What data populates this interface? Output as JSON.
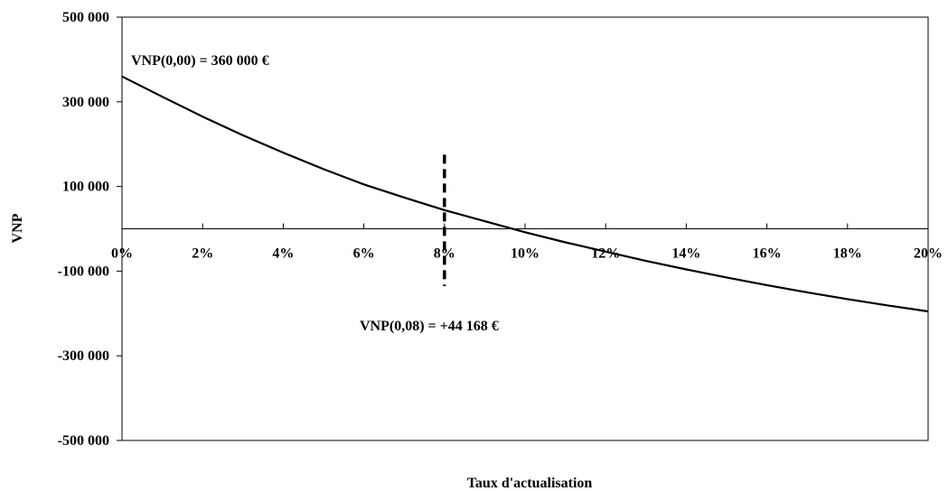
{
  "chart_data": {
    "type": "line",
    "xlabel": "Taux d'actualisation",
    "ylabel": "VNP",
    "xlim": [
      0,
      0.2
    ],
    "ylim": [
      -500000,
      500000
    ],
    "grid": false,
    "x_tick_values": [
      0,
      0.02,
      0.04,
      0.06,
      0.08,
      0.1,
      0.12,
      0.14,
      0.16,
      0.18,
      0.2
    ],
    "x_tick_labels": [
      "0%",
      "2%",
      "4%",
      "6%",
      "8%",
      "10%",
      "12%",
      "14%",
      "16%",
      "18%",
      "20%"
    ],
    "y_tick_values": [
      500000,
      300000,
      100000,
      -100000,
      -300000,
      -500000
    ],
    "y_tick_labels": [
      "500 000",
      "300 000",
      "100 000",
      "-100 000",
      "-300 000",
      "-500 000"
    ],
    "series": [
      {
        "x": [
          0,
          0.01,
          0.02,
          0.03,
          0.04,
          0.05,
          0.06,
          0.07,
          0.08,
          0.09,
          0.1,
          0.11,
          0.12,
          0.13,
          0.14,
          0.15,
          0.16,
          0.17,
          0.18,
          0.19,
          0.2
        ],
        "values": [
          360000,
          312000,
          265000,
          221000,
          180000,
          141000,
          105000,
          74000,
          44168,
          18000,
          -8000,
          -32000,
          -54000,
          -76000,
          -96000,
          -115000,
          -133000,
          -150000,
          -166000,
          -181000,
          -195000
        ],
        "color": "#000000"
      }
    ],
    "marker_line": {
      "x": 0.08,
      "y_range": [
        -135000,
        175000
      ],
      "style": "dashed"
    },
    "annotations": [
      {
        "text": "VNP(0,00) = 360 000 €",
        "x": 0.0,
        "y": 360000
      },
      {
        "text": "VNP(0,08) = +44 168 €",
        "x": 0.08,
        "y": 44168
      }
    ]
  }
}
